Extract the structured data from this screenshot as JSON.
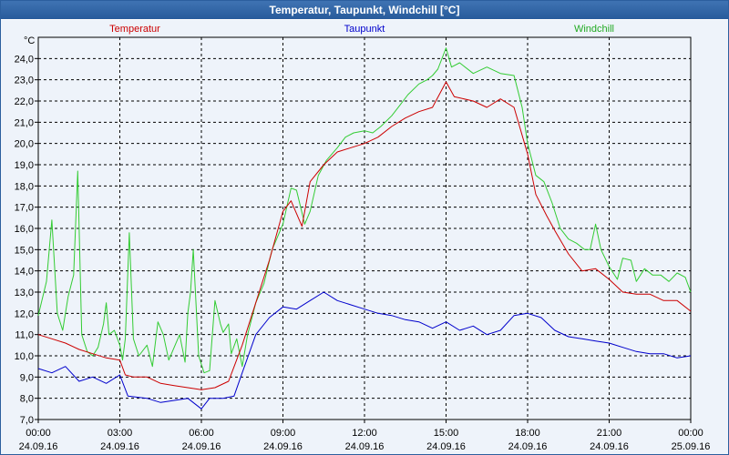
{
  "window": {
    "title": "Temperatur, Taupunkt, Windchill [°C]"
  },
  "colors": {
    "temperatur": "#cc0000",
    "taupunkt": "#0000cc",
    "windchill": "#33cc33",
    "grid": "#000000"
  },
  "chart_data": {
    "type": "line",
    "title": "Temperatur, Taupunkt, Windchill [°C]",
    "ylabel": "°C",
    "ylim": [
      7.0,
      25.0
    ],
    "yticks": [
      "7,0",
      "8,0",
      "9,0",
      "10,0",
      "11,0",
      "12,0",
      "13,0",
      "14,0",
      "15,0",
      "16,0",
      "17,0",
      "18,0",
      "19,0",
      "20,0",
      "21,0",
      "22,0",
      "23,0",
      "24,0"
    ],
    "xlim": [
      0,
      24
    ],
    "xticks": [
      {
        "time": "00:00",
        "date": "24.09.16"
      },
      {
        "time": "03:00",
        "date": "24.09.16"
      },
      {
        "time": "06:00",
        "date": "24.09.16"
      },
      {
        "time": "09:00",
        "date": "24.09.16"
      },
      {
        "time": "12:00",
        "date": "24.09.16"
      },
      {
        "time": "15:00",
        "date": "24.09.16"
      },
      {
        "time": "18:00",
        "date": "24.09.16"
      },
      {
        "time": "21:00",
        "date": "24.09.16"
      },
      {
        "time": "00:00",
        "date": "25.09.16"
      }
    ],
    "grid": true,
    "series": [
      {
        "name": "Temperatur",
        "points": [
          [
            0,
            11.0
          ],
          [
            0.5,
            10.8
          ],
          [
            1,
            10.6
          ],
          [
            1.5,
            10.3
          ],
          [
            2,
            10.1
          ],
          [
            2.5,
            9.9
          ],
          [
            3,
            9.8
          ],
          [
            3.2,
            9.1
          ],
          [
            3.5,
            9.0
          ],
          [
            4,
            9.0
          ],
          [
            4.5,
            8.7
          ],
          [
            5,
            8.6
          ],
          [
            5.5,
            8.5
          ],
          [
            6,
            8.4
          ],
          [
            6.5,
            8.5
          ],
          [
            7,
            8.8
          ],
          [
            7.5,
            10.5
          ],
          [
            8,
            12.5
          ],
          [
            8.5,
            14.5
          ],
          [
            9,
            16.8
          ],
          [
            9.3,
            17.3
          ],
          [
            9.7,
            16.1
          ],
          [
            10,
            18.2
          ],
          [
            10.5,
            19.0
          ],
          [
            11,
            19.6
          ],
          [
            11.5,
            19.8
          ],
          [
            12,
            20.0
          ],
          [
            12.5,
            20.3
          ],
          [
            13,
            20.8
          ],
          [
            13.5,
            21.2
          ],
          [
            14,
            21.5
          ],
          [
            14.5,
            21.7
          ],
          [
            15,
            22.9
          ],
          [
            15.3,
            22.2
          ],
          [
            16,
            22.0
          ],
          [
            16.5,
            21.7
          ],
          [
            17,
            22.1
          ],
          [
            17.5,
            21.7
          ],
          [
            18,
            19.5
          ],
          [
            18.3,
            17.6
          ],
          [
            18.7,
            16.6
          ],
          [
            19,
            15.9
          ],
          [
            19.5,
            14.8
          ],
          [
            20,
            14.0
          ],
          [
            20.5,
            14.1
          ],
          [
            21,
            13.6
          ],
          [
            21.5,
            13.0
          ],
          [
            22,
            12.9
          ],
          [
            22.5,
            12.9
          ],
          [
            23,
            12.6
          ],
          [
            23.5,
            12.6
          ],
          [
            24,
            12.1
          ]
        ]
      },
      {
        "name": "Taupunkt",
        "points": [
          [
            0,
            9.4
          ],
          [
            0.5,
            9.2
          ],
          [
            1,
            9.5
          ],
          [
            1.5,
            8.8
          ],
          [
            2,
            9.0
          ],
          [
            2.5,
            8.7
          ],
          [
            3,
            9.1
          ],
          [
            3.3,
            8.1
          ],
          [
            4,
            8.0
          ],
          [
            4.5,
            7.8
          ],
          [
            5,
            7.9
          ],
          [
            5.5,
            8.0
          ],
          [
            6,
            7.5
          ],
          [
            6.3,
            8.0
          ],
          [
            6.8,
            8.0
          ],
          [
            7.2,
            8.1
          ],
          [
            7.5,
            9.2
          ],
          [
            8,
            11.0
          ],
          [
            8.5,
            11.8
          ],
          [
            9,
            12.3
          ],
          [
            9.5,
            12.2
          ],
          [
            10,
            12.6
          ],
          [
            10.5,
            13.0
          ],
          [
            11,
            12.6
          ],
          [
            11.5,
            12.4
          ],
          [
            12,
            12.2
          ],
          [
            12.5,
            12.0
          ],
          [
            13,
            11.9
          ],
          [
            13.5,
            11.7
          ],
          [
            14,
            11.6
          ],
          [
            14.5,
            11.3
          ],
          [
            15,
            11.6
          ],
          [
            15.5,
            11.2
          ],
          [
            16,
            11.4
          ],
          [
            16.5,
            11.0
          ],
          [
            17,
            11.2
          ],
          [
            17.5,
            11.9
          ],
          [
            18,
            12.0
          ],
          [
            18.5,
            11.8
          ],
          [
            19,
            11.2
          ],
          [
            19.5,
            10.9
          ],
          [
            20,
            10.8
          ],
          [
            20.5,
            10.7
          ],
          [
            21,
            10.6
          ],
          [
            21.5,
            10.4
          ],
          [
            22,
            10.2
          ],
          [
            22.5,
            10.1
          ],
          [
            23,
            10.1
          ],
          [
            23.5,
            9.9
          ],
          [
            24,
            10.0
          ]
        ]
      },
      {
        "name": "Windchill",
        "points": [
          [
            0,
            11.9
          ],
          [
            0.3,
            13.5
          ],
          [
            0.5,
            16.4
          ],
          [
            0.7,
            12.0
          ],
          [
            0.9,
            11.2
          ],
          [
            1.1,
            12.8
          ],
          [
            1.3,
            13.8
          ],
          [
            1.45,
            18.7
          ],
          [
            1.6,
            11.0
          ],
          [
            1.8,
            10.2
          ],
          [
            2,
            10.0
          ],
          [
            2.2,
            10.4
          ],
          [
            2.4,
            11.5
          ],
          [
            2.5,
            12.5
          ],
          [
            2.6,
            11.0
          ],
          [
            2.8,
            11.2
          ],
          [
            3,
            10.5
          ],
          [
            3.1,
            9.8
          ],
          [
            3.2,
            10.8
          ],
          [
            3.35,
            15.8
          ],
          [
            3.5,
            10.8
          ],
          [
            3.7,
            10.0
          ],
          [
            4,
            10.5
          ],
          [
            4.2,
            9.5
          ],
          [
            4.4,
            11.6
          ],
          [
            4.6,
            11.0
          ],
          [
            4.8,
            9.8
          ],
          [
            5.2,
            11.0
          ],
          [
            5.4,
            9.7
          ],
          [
            5.5,
            12.0
          ],
          [
            5.6,
            13.0
          ],
          [
            5.7,
            15.0
          ],
          [
            5.9,
            10.0
          ],
          [
            6.1,
            9.2
          ],
          [
            6.3,
            9.3
          ],
          [
            6.5,
            12.6
          ],
          [
            6.7,
            11.5
          ],
          [
            6.8,
            11.1
          ],
          [
            7,
            11.5
          ],
          [
            7.1,
            10.1
          ],
          [
            7.3,
            10.8
          ],
          [
            7.5,
            9.5
          ],
          [
            7.7,
            11.0
          ],
          [
            8,
            12.5
          ],
          [
            8.3,
            13.4
          ],
          [
            8.6,
            15.0
          ],
          [
            9,
            16.2
          ],
          [
            9.3,
            17.9
          ],
          [
            9.5,
            17.8
          ],
          [
            9.8,
            16.2
          ],
          [
            10,
            16.8
          ],
          [
            10.3,
            18.5
          ],
          [
            10.6,
            19.2
          ],
          [
            11,
            19.8
          ],
          [
            11.3,
            20.3
          ],
          [
            11.6,
            20.5
          ],
          [
            12,
            20.6
          ],
          [
            12.3,
            20.5
          ],
          [
            12.6,
            20.8
          ],
          [
            13,
            21.3
          ],
          [
            13.3,
            21.8
          ],
          [
            13.6,
            22.3
          ],
          [
            14,
            22.8
          ],
          [
            14.3,
            23.0
          ],
          [
            14.5,
            23.2
          ],
          [
            14.7,
            23.5
          ],
          [
            15,
            24.5
          ],
          [
            15.2,
            23.6
          ],
          [
            15.5,
            23.8
          ],
          [
            16,
            23.3
          ],
          [
            16.5,
            23.6
          ],
          [
            17,
            23.3
          ],
          [
            17.5,
            23.2
          ],
          [
            17.8,
            21.7
          ],
          [
            18,
            20.0
          ],
          [
            18.3,
            18.5
          ],
          [
            18.6,
            18.2
          ],
          [
            18.9,
            17.2
          ],
          [
            19.2,
            16.0
          ],
          [
            19.5,
            15.5
          ],
          [
            19.8,
            15.3
          ],
          [
            20.1,
            15.0
          ],
          [
            20.3,
            15.0
          ],
          [
            20.5,
            16.2
          ],
          [
            20.7,
            15.0
          ],
          [
            21,
            14.2
          ],
          [
            21.3,
            13.6
          ],
          [
            21.5,
            14.6
          ],
          [
            21.8,
            14.5
          ],
          [
            22,
            13.5
          ],
          [
            22.3,
            14.1
          ],
          [
            22.6,
            13.8
          ],
          [
            22.9,
            13.8
          ],
          [
            23.2,
            13.5
          ],
          [
            23.5,
            13.9
          ],
          [
            23.8,
            13.7
          ],
          [
            24,
            13.0
          ]
        ]
      }
    ]
  }
}
